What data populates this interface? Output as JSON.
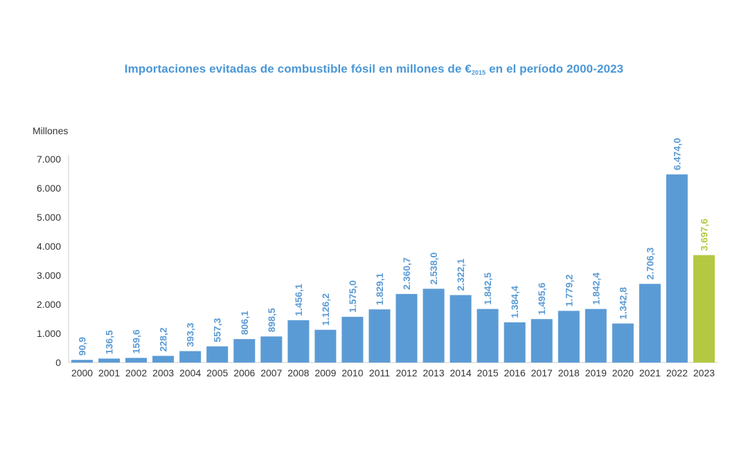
{
  "chart_data": {
    "type": "bar",
    "title": "Importaciones evitadas de combustible fósil en millones de €",
    "title_subscript": "2015",
    "title_suffix": "en el período 2000-2023",
    "xlabel": "",
    "ylabel": "Millones",
    "ylim": [
      0,
      7000
    ],
    "yticks": [
      0,
      1000,
      2000,
      3000,
      4000,
      5000,
      6000,
      7000
    ],
    "ytick_labels": [
      "0",
      "1.000",
      "2.000",
      "3.000",
      "4.000",
      "5.000",
      "6.000",
      "7.000"
    ],
    "grid": false,
    "categories": [
      "2000",
      "2001",
      "2002",
      "2003",
      "2004",
      "2005",
      "2006",
      "2007",
      "2008",
      "2009",
      "2010",
      "2011",
      "2012",
      "2013",
      "2014",
      "2015",
      "2016",
      "2017",
      "2018",
      "2019",
      "2020",
      "2021",
      "2022",
      "2023"
    ],
    "values": [
      90.9,
      136.5,
      159.6,
      228.2,
      393.3,
      557.3,
      806.1,
      898.5,
      1456.1,
      1126.2,
      1575.0,
      1829.1,
      2360.7,
      2538.0,
      2322.1,
      1842.5,
      1384.4,
      1495.6,
      1779.2,
      1842.4,
      1342.8,
      2706.3,
      6474.0,
      3697.6
    ],
    "value_labels": [
      "90,9",
      "136,5",
      "159,6",
      "228,2",
      "393,3",
      "557,3",
      "806,1",
      "898,5",
      "1.456,1",
      "1.126,2",
      "1.575,0",
      "1.829,1",
      "2.360,7",
      "2.538,0",
      "2.322,1",
      "1.842,5",
      "1.384,4",
      "1.495,6",
      "1.779,2",
      "1.842,4",
      "1.342,8",
      "2.706,3",
      "6.474,0",
      "3.697,6"
    ],
    "colors": {
      "default": "#5b9bd5",
      "highlight": "#b5c842",
      "title": "#4a97d6",
      "axis": "#cccccc",
      "tick_text": "#333333"
    },
    "highlight_categories": [
      "2023"
    ]
  }
}
